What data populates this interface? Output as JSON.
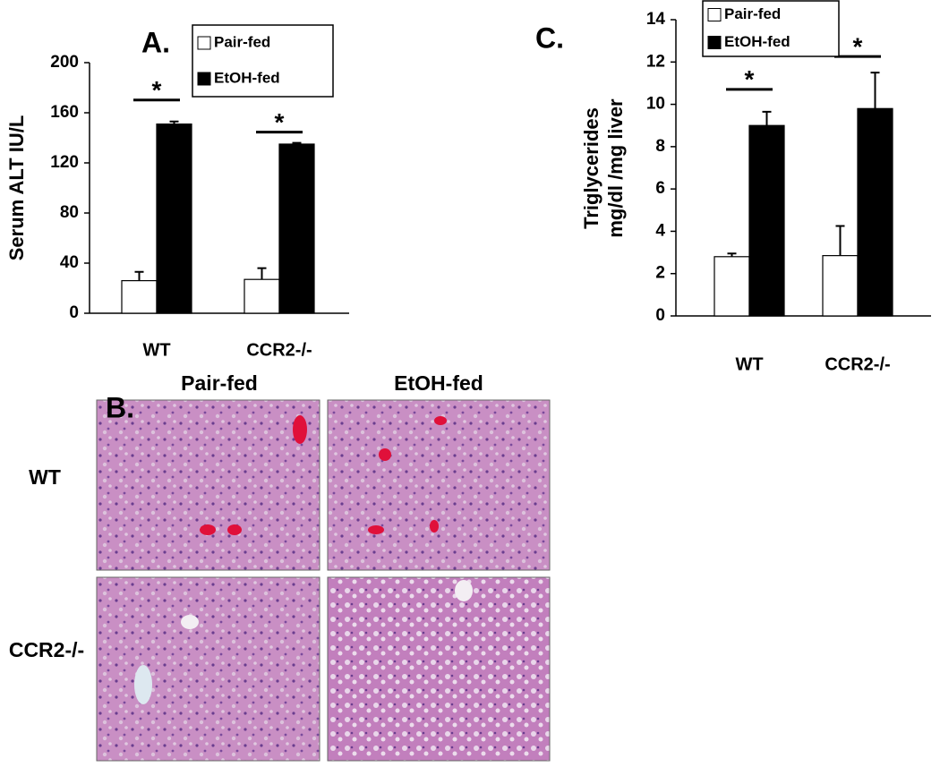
{
  "chart_data": [
    {
      "type": "bar",
      "title": "A.",
      "ylabel": [
        "Serum ALT IU/L"
      ],
      "categories": [
        "WT",
        "CCR2-/-"
      ],
      "series": [
        {
          "name": "Pair-fed",
          "color": "#ffffff",
          "values": [
            26,
            27
          ],
          "errors": [
            7,
            9
          ]
        },
        {
          "name": "EtOH-fed",
          "color": "#000000",
          "values": [
            151,
            135
          ],
          "errors": [
            2,
            1
          ]
        }
      ],
      "annotations": [
        "*",
        "*"
      ],
      "ylim": [
        0,
        200
      ],
      "yticks": [
        0,
        40,
        80,
        120,
        160,
        200
      ]
    },
    {
      "type": "bar",
      "title": "C.",
      "ylabel": [
        "Triglycerides",
        "mg/dl /mg liver"
      ],
      "categories": [
        "WT",
        "CCR2-/-"
      ],
      "series": [
        {
          "name": "Pair-fed",
          "color": "#ffffff",
          "values": [
            2.8,
            2.85
          ],
          "errors": [
            0.15,
            1.4
          ]
        },
        {
          "name": "EtOH-fed",
          "color": "#000000",
          "values": [
            9.0,
            9.8
          ],
          "errors": [
            0.65,
            1.7
          ]
        }
      ],
      "annotations": [
        "*",
        "*"
      ],
      "ylim": [
        0,
        14
      ],
      "yticks": [
        0,
        2,
        4,
        6,
        8,
        10,
        12,
        14
      ]
    }
  ],
  "panel_b": {
    "label": "B.",
    "columns": [
      "Pair-fed",
      "EtOH-fed"
    ],
    "rows": [
      "WT",
      "CCR2-/-"
    ]
  }
}
